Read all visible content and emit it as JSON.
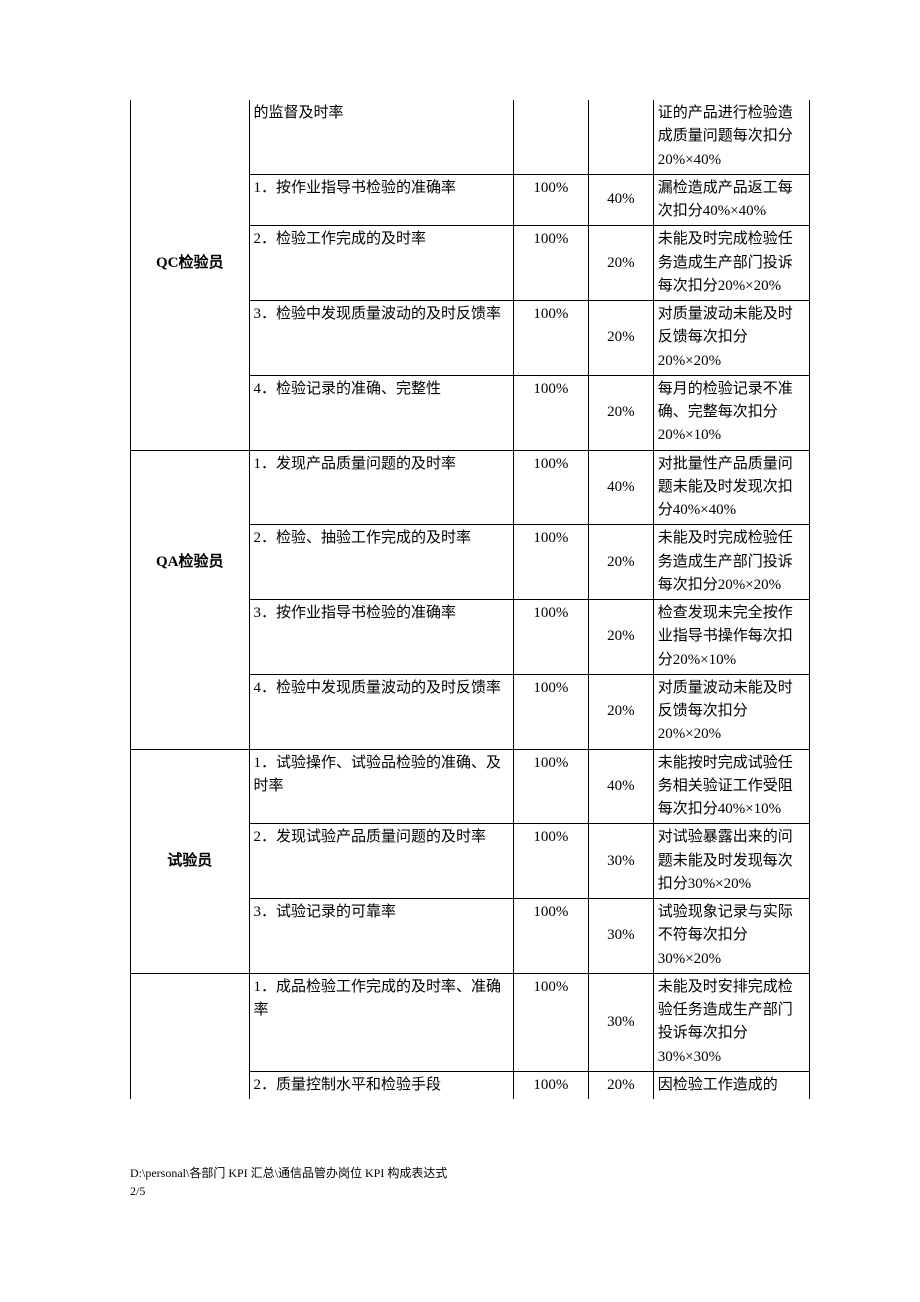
{
  "rows": [
    {
      "role": "",
      "kpi": "的监督及时率",
      "target": "",
      "weight": "",
      "detail": "证的产品进行检验造成质量问题每次扣分20%×40%",
      "roleClass": "no-top-border no-bottom-border",
      "kpiClass": "no-top-border",
      "targetClass": "no-top-border",
      "weightClass": "no-top-border",
      "detailClass": "no-top-border"
    },
    {
      "role": "",
      "kpi": "1．按作业指导书检验的准确率",
      "target": "100%",
      "weight": "40%",
      "detail": "漏检造成产品返工每次扣分40%×40%",
      "roleClass": "no-top-border no-bottom-border"
    },
    {
      "role": "QC检验员",
      "kpi": "2．检验工作完成的及时率",
      "target": "100%",
      "weight": "20%",
      "detail": "未能及时完成检验任务造成生产部门投诉每次扣分20%×20%",
      "roleClass": "no-top-border no-bottom-border"
    },
    {
      "role": "",
      "kpi": "3．检验中发现质量波动的及时反馈率",
      "target": "100%",
      "weight": "20%",
      "detail": "对质量波动未能及时反馈每次扣分20%×20%",
      "roleClass": "no-top-border no-bottom-border"
    },
    {
      "role": "",
      "kpi": "4．检验记录的准确、完整性",
      "target": "100%",
      "weight": "20%",
      "detail": "每月的检验记录不准确、完整每次扣分20%×10%",
      "roleClass": "no-top-border"
    },
    {
      "role": "",
      "kpi": "1．发现产品质量问题的及时率",
      "target": "100%",
      "weight": "40%",
      "detail": "对批量性产品质量问题未能及时发现次扣分40%×40%",
      "roleClass": "no-bottom-border"
    },
    {
      "role": "QA检验员",
      "kpi": "2．检验、抽验工作完成的及时率",
      "target": "100%",
      "weight": "20%",
      "detail": "未能及时完成检验任务造成生产部门投诉每次扣分20%×20%",
      "roleClass": "no-top-border no-bottom-border"
    },
    {
      "role": "",
      "kpi": "3．按作业指导书检验的准确率",
      "target": "100%",
      "weight": "20%",
      "detail": "检查发现未完全按作业指导书操作每次扣分20%×10%",
      "roleClass": "no-top-border no-bottom-border"
    },
    {
      "role": "",
      "kpi": "4．检验中发现质量波动的及时反馈率",
      "target": "100%",
      "weight": "20%",
      "detail": "对质量波动未能及时反馈每次扣分20%×20%",
      "roleClass": "no-top-border"
    },
    {
      "role": "",
      "kpi": "1．试验操作、试验品检验的准确、及时率",
      "target": "100%",
      "weight": "40%",
      "detail": "未能按时完成试验任务相关验证工作受阻每次扣分40%×10%",
      "roleClass": "no-bottom-border"
    },
    {
      "role": "试验员",
      "kpi": "2．发现试验产品质量问题的及时率",
      "target": "100%",
      "weight": "30%",
      "detail": "对试验暴露出来的问题未能及时发现每次扣分30%×20%",
      "roleClass": "no-top-border no-bottom-border"
    },
    {
      "role": "",
      "kpi": "3．试验记录的可靠率",
      "target": "100%",
      "weight": "30%",
      "detail": "试验现象记录与实际不符每次扣分30%×20%",
      "roleClass": "no-top-border"
    },
    {
      "role": "",
      "kpi": "1．成品检验工作完成的及时率、准确率",
      "target": "100%",
      "weight": "30%",
      "detail": "未能及时安排完成检验任务造成生产部门投诉每次扣分30%×30%",
      "roleClass": "no-bottom-border"
    },
    {
      "role": "",
      "kpi": "2．质量控制水平和检验手段",
      "target": "100%",
      "weight": "20%",
      "detail": "因检验工作造成的",
      "roleClass": "no-top-border no-bottom-border",
      "kpiClass": "no-bottom-border",
      "targetClass": "no-bottom-border",
      "weightClass": "no-bottom-border",
      "detailClass": "no-bottom-border"
    }
  ],
  "footer": {
    "path": "D:\\personal\\各部门 KPI 汇总\\通信品管办岗位 KPI 构成表达式",
    "page": "2/5"
  }
}
